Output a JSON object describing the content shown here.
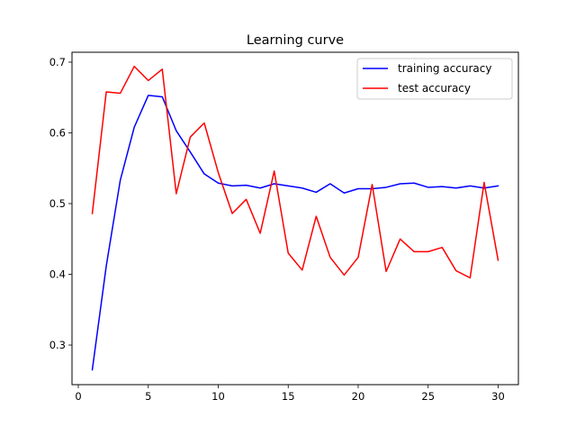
{
  "chart_data": {
    "type": "line",
    "title": "Learning curve",
    "xlabel": "",
    "ylabel": "",
    "xlim": [
      -0.45,
      31.45
    ],
    "ylim": [
      0.244,
      0.714
    ],
    "xticks": [
      0,
      5,
      10,
      15,
      20,
      25,
      30
    ],
    "yticks": [
      0.3,
      0.4,
      0.5,
      0.6,
      0.7
    ],
    "grid": false,
    "legend_position": "upper right",
    "x": [
      1,
      2,
      3,
      4,
      5,
      6,
      7,
      8,
      9,
      10,
      11,
      12,
      13,
      14,
      15,
      16,
      17,
      18,
      19,
      20,
      21,
      22,
      23,
      24,
      25,
      26,
      27,
      28,
      29,
      30
    ],
    "series": [
      {
        "name": "training accuracy",
        "color": "#0000ff",
        "values": [
          0.265,
          0.412,
          0.533,
          0.608,
          0.653,
          0.651,
          0.603,
          0.573,
          0.542,
          0.529,
          0.525,
          0.526,
          0.522,
          0.528,
          0.525,
          0.522,
          0.516,
          0.528,
          0.515,
          0.521,
          0.521,
          0.523,
          0.528,
          0.529,
          0.523,
          0.524,
          0.522,
          0.525,
          0.522,
          0.525
        ]
      },
      {
        "name": "test accuracy",
        "color": "#ff0000",
        "values": [
          0.486,
          0.658,
          0.656,
          0.694,
          0.674,
          0.69,
          0.514,
          0.594,
          0.614,
          0.544,
          0.486,
          0.506,
          0.458,
          0.546,
          0.43,
          0.406,
          0.482,
          0.424,
          0.399,
          0.424,
          0.527,
          0.404,
          0.45,
          0.432,
          0.432,
          0.438,
          0.405,
          0.395,
          0.53,
          0.42
        ]
      }
    ]
  }
}
